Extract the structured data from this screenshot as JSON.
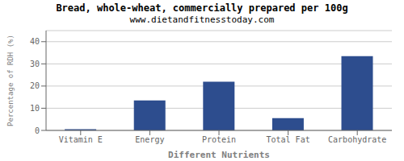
{
  "chart_data": {
    "type": "bar",
    "title": "Bread, whole-wheat, commercially prepared per 100g",
    "subtitle": "www.dietandfitnesstoday.com",
    "xlabel": "Different Nutrients",
    "ylabel": "Percentage of RDH (%)",
    "categories": [
      "Vitamin E",
      "Energy",
      "Protein",
      "Total Fat",
      "Carbohydrate"
    ],
    "values": [
      0.5,
      13.5,
      22.0,
      5.5,
      33.5
    ],
    "color": "#2d4d8e",
    "ylim": [
      0,
      45
    ],
    "yticks": [
      0,
      10,
      20,
      30,
      40
    ],
    "grid": true
  }
}
